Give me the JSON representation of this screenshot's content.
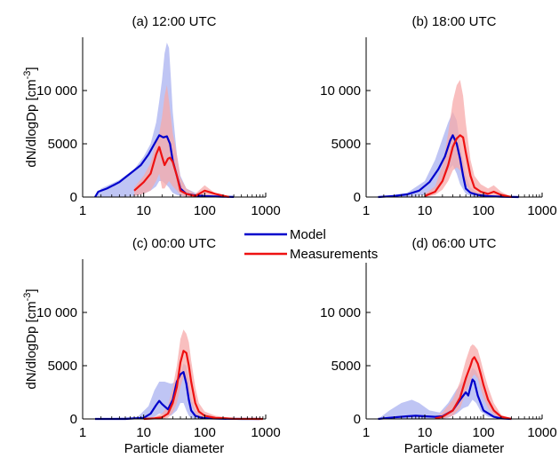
{
  "figure": {
    "legend": {
      "model": "Model",
      "measurements": "Measurements"
    },
    "colors": {
      "model": "#0000cc",
      "model_band": "#aab1f0",
      "meas": "#ee1111",
      "meas_band": "#f7aaaa"
    }
  },
  "chart_data": [
    {
      "type": "line",
      "title": "(a) 12:00 UTC",
      "xlabel": "",
      "ylabel": "dN/dlogDp [cm",
      "ylabel_sup": "-3",
      "ylabel_close": "]",
      "x_scale": "log",
      "xlim": [
        1,
        1000
      ],
      "ylim": [
        0,
        15000
      ],
      "xticks": [
        "1",
        "10",
        "100",
        "1000"
      ],
      "yticks": [
        "0",
        "5000",
        "10 000"
      ],
      "series": [
        {
          "name": "Model",
          "x": [
            1.6,
            1.8,
            2.5,
            4,
            6,
            9,
            12,
            15,
            18,
            21,
            24,
            27,
            30,
            35,
            40,
            50,
            70,
            100,
            150,
            200,
            300
          ],
          "y": [
            0,
            500,
            800,
            1400,
            2200,
            3000,
            4000,
            5000,
            5800,
            5600,
            5700,
            5000,
            3400,
            2000,
            800,
            300,
            150,
            80,
            50,
            30,
            10
          ],
          "band_x": [
            1.6,
            2,
            4,
            7,
            10,
            13,
            16,
            18,
            20,
            22,
            24,
            26,
            28,
            30,
            35,
            40,
            50,
            70,
            100,
            200,
            300
          ],
          "band_lo": [
            0,
            0,
            0,
            100,
            300,
            600,
            1000,
            1500,
            1500,
            1300,
            1100,
            900,
            600,
            400,
            200,
            100,
            50,
            20,
            10,
            0,
            0
          ],
          "band_hi": [
            0,
            800,
            1600,
            2600,
            3800,
            5000,
            7000,
            9000,
            11000,
            13500,
            14500,
            14000,
            11000,
            8000,
            4000,
            2000,
            800,
            400,
            250,
            100,
            0
          ]
        },
        {
          "name": "Measurements",
          "x": [
            7,
            10,
            13,
            16,
            18,
            20,
            22,
            25,
            27,
            30,
            35,
            40,
            50,
            70,
            100,
            150,
            250
          ],
          "y": [
            600,
            1400,
            2200,
            4000,
            4700,
            3800,
            3000,
            3600,
            3700,
            3300,
            2000,
            600,
            300,
            100,
            600,
            300,
            0
          ],
          "band_x": [
            7,
            10,
            13,
            16,
            18,
            20,
            22,
            24,
            26,
            30,
            35,
            40,
            50,
            70,
            100,
            130,
            160,
            250
          ],
          "band_lo": [
            100,
            300,
            600,
            1500,
            2200,
            800,
            800,
            1200,
            1500,
            1000,
            600,
            200,
            0,
            0,
            200,
            0,
            0,
            0
          ],
          "band_hi": [
            900,
            2000,
            3200,
            5200,
            6000,
            7500,
            9500,
            10500,
            9000,
            6000,
            4000,
            1800,
            800,
            300,
            1100,
            600,
            200,
            0
          ]
        }
      ]
    },
    {
      "type": "line",
      "title": "(b) 18:00 UTC",
      "xlabel": "",
      "ylabel": "",
      "x_scale": "log",
      "xlim": [
        1,
        1000
      ],
      "ylim": [
        0,
        15000
      ],
      "xticks": [
        "1",
        "10",
        "100",
        "1000"
      ],
      "yticks": [
        "0",
        "5000",
        "10 000"
      ],
      "series": [
        {
          "name": "Model",
          "x": [
            1.6,
            3,
            5,
            8,
            12,
            17,
            22,
            27,
            30,
            35,
            40,
            45,
            50,
            60,
            80,
            120,
            200,
            400
          ],
          "y": [
            0,
            100,
            250,
            600,
            1400,
            2600,
            3800,
            5300,
            5800,
            5000,
            3600,
            2000,
            800,
            400,
            200,
            80,
            30,
            0
          ],
          "band_x": [
            1.6,
            5,
            10,
            15,
            20,
            25,
            30,
            35,
            40,
            50,
            60,
            80,
            120,
            200,
            400
          ],
          "band_lo": [
            0,
            0,
            200,
            700,
            1500,
            2500,
            3000,
            2200,
            1200,
            300,
            100,
            0,
            0,
            0,
            0
          ],
          "band_hi": [
            0,
            400,
            1500,
            3500,
            5500,
            7000,
            8000,
            7200,
            5000,
            2000,
            900,
            400,
            200,
            80,
            0
          ]
        },
        {
          "name": "Measurements",
          "x": [
            10,
            15,
            20,
            25,
            30,
            35,
            40,
            45,
            50,
            60,
            70,
            90,
            120,
            150,
            200,
            300
          ],
          "y": [
            100,
            500,
            1500,
            3000,
            4700,
            5500,
            5800,
            5600,
            4200,
            2000,
            900,
            500,
            300,
            500,
            200,
            0
          ],
          "band_x": [
            10,
            15,
            20,
            25,
            30,
            35,
            40,
            45,
            50,
            60,
            70,
            90,
            120,
            150,
            200,
            300
          ],
          "band_lo": [
            0,
            200,
            700,
            1500,
            2500,
            2800,
            2500,
            2000,
            1200,
            500,
            200,
            100,
            100,
            100,
            0,
            0
          ],
          "band_hi": [
            300,
            1000,
            3000,
            6000,
            9000,
            10500,
            11000,
            9500,
            7000,
            3500,
            2000,
            1200,
            800,
            1100,
            500,
            0
          ]
        }
      ]
    },
    {
      "type": "line",
      "title": "(c) 00:00 UTC",
      "xlabel": "Particle diameter",
      "ylabel": "dN/dlogDp [cm",
      "ylabel_sup": "-3",
      "ylabel_close": "]",
      "x_scale": "log",
      "xlim": [
        1,
        1000
      ],
      "ylim": [
        0,
        15000
      ],
      "xticks": [
        "1",
        "10",
        "100",
        "1000"
      ],
      "yticks": [
        "0",
        "5000",
        "10 000"
      ],
      "series": [
        {
          "name": "Model",
          "x": [
            1.6,
            5,
            10,
            13,
            16,
            18,
            20,
            25,
            30,
            35,
            40,
            45,
            50,
            55,
            60,
            70,
            90,
            120,
            200,
            400,
            800
          ],
          "y": [
            0,
            0,
            100,
            500,
            1300,
            1700,
            1400,
            900,
            1800,
            3500,
            4200,
            4400,
            3300,
            1800,
            800,
            300,
            100,
            50,
            20,
            0,
            0
          ],
          "band_x": [
            1.6,
            8,
            12,
            15,
            18,
            22,
            28,
            35,
            40,
            45,
            50,
            55,
            60,
            70,
            90,
            120,
            200
          ],
          "band_lo": [
            0,
            0,
            0,
            200,
            500,
            400,
            300,
            800,
            1500,
            1500,
            800,
            300,
            100,
            0,
            0,
            0,
            0
          ],
          "band_hi": [
            0,
            200,
            1200,
            2700,
            3500,
            3500,
            3300,
            3500,
            4200,
            5200,
            5000,
            3500,
            2000,
            800,
            300,
            100,
            0
          ]
        },
        {
          "name": "Measurements",
          "x": [
            10,
            15,
            20,
            25,
            30,
            35,
            40,
            45,
            50,
            55,
            60,
            70,
            80,
            100,
            150,
            300,
            900
          ],
          "y": [
            0,
            50,
            150,
            500,
            1500,
            3000,
            5300,
            6400,
            6200,
            5000,
            3500,
            1500,
            700,
            300,
            100,
            20,
            0
          ],
          "band_x": [
            10,
            15,
            20,
            25,
            30,
            35,
            40,
            45,
            50,
            55,
            60,
            70,
            80,
            100,
            150,
            300,
            900
          ],
          "band_lo": [
            0,
            0,
            0,
            100,
            600,
            1500,
            3000,
            4000,
            3500,
            2500,
            1500,
            500,
            200,
            50,
            0,
            0,
            0
          ],
          "band_hi": [
            0,
            200,
            500,
            1200,
            3000,
            5000,
            7500,
            8400,
            8000,
            7200,
            5500,
            3000,
            1500,
            700,
            300,
            60,
            0
          ]
        }
      ]
    },
    {
      "type": "line",
      "title": "(d) 06:00 UTC",
      "xlabel": "Particle diameter",
      "ylabel": "",
      "x_scale": "log",
      "xlim": [
        1,
        1000
      ],
      "ylim": [
        0,
        15000
      ],
      "xticks": [
        "1",
        "10",
        "100",
        "1000"
      ],
      "yticks": [
        "0",
        "5000",
        "10 000"
      ],
      "series": [
        {
          "name": "Model",
          "x": [
            1.6,
            3,
            5,
            7,
            10,
            15,
            20,
            30,
            40,
            50,
            55,
            60,
            65,
            70,
            80,
            100,
            150,
            200,
            300
          ],
          "y": [
            0,
            150,
            250,
            300,
            250,
            200,
            250,
            800,
            1800,
            2500,
            2200,
            3000,
            3700,
            3500,
            2200,
            800,
            200,
            50,
            0
          ],
          "band_x": [
            1.6,
            2.5,
            4,
            6,
            8,
            12,
            18,
            25,
            35,
            45,
            55,
            65,
            75,
            90,
            120,
            200,
            300
          ],
          "band_lo": [
            0,
            0,
            0,
            0,
            0,
            0,
            0,
            100,
            500,
            1000,
            1200,
            1800,
            1500,
            700,
            200,
            0,
            0
          ],
          "band_hi": [
            0,
            800,
            1500,
            1800,
            1500,
            800,
            600,
            1500,
            2800,
            3500,
            4000,
            4800,
            4500,
            3500,
            1500,
            300,
            0
          ]
        },
        {
          "name": "Measurements",
          "x": [
            15,
            20,
            30,
            40,
            50,
            60,
            65,
            70,
            80,
            90,
            100,
            120,
            150,
            200,
            300
          ],
          "y": [
            50,
            200,
            800,
            2000,
            3800,
            5000,
            5600,
            5800,
            5200,
            4200,
            3200,
            1800,
            800,
            200,
            0
          ],
          "band_x": [
            15,
            20,
            30,
            40,
            50,
            60,
            65,
            70,
            80,
            90,
            100,
            120,
            150,
            200,
            300
          ],
          "band_lo": [
            0,
            0,
            300,
            1000,
            2500,
            3500,
            4000,
            4200,
            3800,
            2800,
            2000,
            1000,
            400,
            50,
            0
          ],
          "band_hi": [
            200,
            600,
            1800,
            3500,
            5500,
            6800,
            7000,
            6900,
            6500,
            5500,
            4500,
            3000,
            1500,
            400,
            0
          ]
        }
      ]
    }
  ]
}
